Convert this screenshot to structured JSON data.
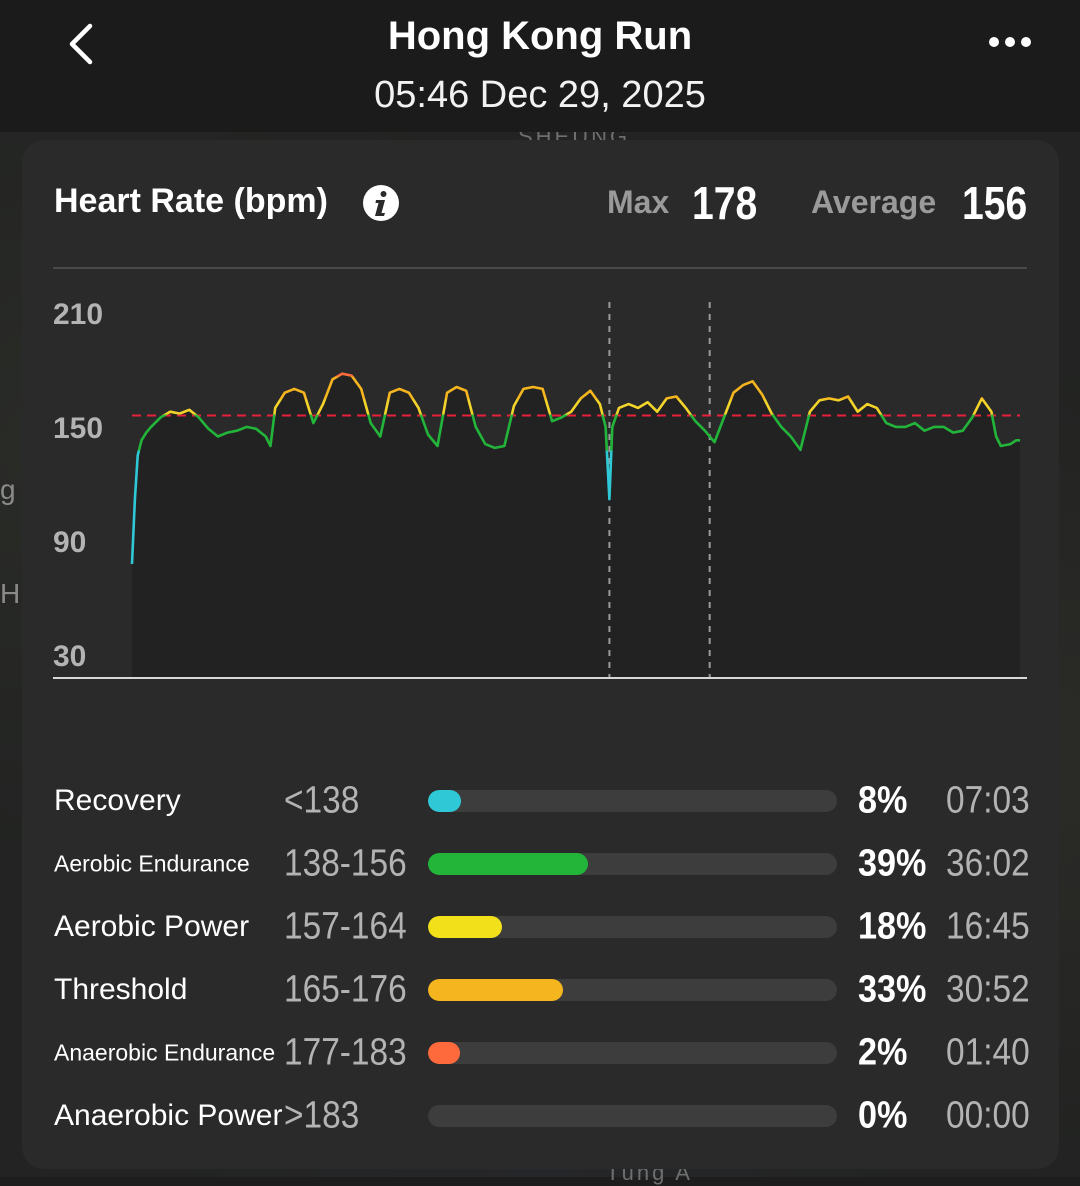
{
  "header": {
    "title": "Hong Kong Run",
    "datetime": "05:46 Dec 29, 2025"
  },
  "map": {
    "label_left_1": "g",
    "label_left_2": "H",
    "street_top": "SHEUNG",
    "street_bottom": "Tung A"
  },
  "card": {
    "title": "Heart Rate (bpm)",
    "max_label": "Max",
    "max_value": "178",
    "avg_label": "Average",
    "avg_value": "156"
  },
  "chart_data": {
    "type": "line",
    "title": "Heart Rate (bpm)",
    "xlabel": "",
    "ylabel": "",
    "x_ticks": [
      "0",
      "30",
      "60",
      "90"
    ],
    "y_ticks": [
      "210",
      "150",
      "90",
      "30"
    ],
    "xlim": [
      0,
      93
    ],
    "ylim": [
      18,
      222
    ],
    "average_line": 156,
    "markers": [
      50,
      60.5
    ],
    "zone_colors": {
      "recovery": "#2ec8d6",
      "aerobic_endurance": "#22b53a",
      "aerobic_power": "#f2d42a",
      "threshold": "#f5b51e",
      "anaerobic_endurance": "#ff6a3d"
    },
    "series": [
      {
        "x": [
          0,
          0.3,
          0.6,
          1,
          1.5,
          2,
          3,
          4,
          5,
          6,
          7,
          8,
          9,
          10,
          11,
          12,
          13,
          14,
          14.5,
          15,
          16,
          17,
          18,
          19,
          20,
          21,
          22,
          23,
          24,
          25,
          26,
          27,
          28,
          29,
          30,
          31,
          32,
          33,
          34,
          35,
          36,
          37,
          38,
          39,
          40,
          41,
          42,
          43,
          44,
          45,
          46,
          47,
          48,
          49,
          49.6,
          50,
          50.3,
          51,
          52,
          53,
          54,
          55,
          56,
          57,
          58,
          59,
          60,
          61,
          62,
          63,
          64,
          65,
          66,
          67,
          68,
          69,
          70,
          71,
          72,
          73,
          74,
          75,
          76,
          77,
          78,
          79,
          80,
          81,
          82,
          83,
          84,
          85,
          86,
          87,
          88,
          89,
          90,
          90.5,
          91,
          92,
          92.6,
          93
        ],
        "y": [
          78,
          112,
          135,
          143,
          147,
          150,
          155,
          158,
          157,
          159,
          155,
          149,
          145,
          147,
          148,
          150,
          149,
          145,
          140,
          160,
          168,
          170,
          168,
          152,
          162,
          175,
          178,
          177,
          170,
          152,
          145,
          168,
          170,
          168,
          160,
          146,
          140,
          168,
          171,
          169,
          150,
          141,
          139,
          140,
          161,
          170,
          171,
          170,
          153,
          155,
          158,
          165,
          169,
          162,
          150,
          112,
          150,
          160,
          162,
          160,
          163,
          158,
          165,
          166,
          160,
          153,
          148,
          142,
          155,
          168,
          172,
          174,
          167,
          157,
          150,
          145,
          138,
          158,
          164,
          165,
          164,
          166,
          158,
          162,
          160,
          152,
          150,
          150,
          152,
          148,
          150,
          150,
          147,
          148,
          155,
          165,
          158,
          145,
          140,
          141,
          143,
          143
        ]
      }
    ]
  },
  "zones": [
    {
      "name": "Recovery",
      "size": "big",
      "range": "<138",
      "pct": 8,
      "pct_label": "8%",
      "time": "07:03",
      "color": "#2ec8d6"
    },
    {
      "name": "Aerobic Endurance",
      "size": "small",
      "range": "138-156",
      "pct": 39,
      "pct_label": "39%",
      "time": "36:02",
      "color": "#22b53a"
    },
    {
      "name": "Aerobic Power",
      "size": "big",
      "range": "157-164",
      "pct": 18,
      "pct_label": "18%",
      "time": "16:45",
      "color": "#f2e01a"
    },
    {
      "name": "Threshold",
      "size": "big",
      "range": "165-176",
      "pct": 33,
      "pct_label": "33%",
      "time": "30:52",
      "color": "#f5b51e"
    },
    {
      "name": "Anaerobic Endurance",
      "size": "small",
      "range": "177-183",
      "pct": 2,
      "pct_label": "2%",
      "time": "01:40",
      "color": "#ff6a3d"
    },
    {
      "name": "Anaerobic Power",
      "size": "big",
      "range": ">183",
      "pct": 0,
      "pct_label": "0%",
      "time": "00:00",
      "color": "#aaaaaa"
    }
  ]
}
